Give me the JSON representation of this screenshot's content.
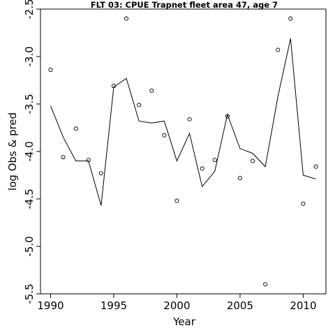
{
  "chart_data": {
    "type": "line",
    "title": "FLT 03: CPUE Trapnet fleet area 47, age 7",
    "xlabel": "Year",
    "ylabel": "log Obs & pred",
    "xlim": [
      1989.2,
      2011.8
    ],
    "ylim": [
      -5.5,
      -2.5
    ],
    "xticks": [
      1990,
      1995,
      2000,
      2005,
      2010
    ],
    "yticks": [
      -5.5,
      -5.0,
      -4.5,
      -4.0,
      -3.5,
      -3.0,
      -2.5
    ],
    "ytick_labels": [
      "-5.5",
      "-5.0",
      "-4.5",
      "-4.0",
      "-3.5",
      "-3.0",
      "-2.5"
    ],
    "grid": false,
    "legend": "none",
    "series": [
      {
        "kind": "points",
        "marker": "open-circle",
        "x": [
          1990,
          1991,
          1992,
          1993,
          1994,
          1995,
          1996,
          1997,
          1998,
          1999,
          2000,
          2001,
          2002,
          2003,
          2004,
          2005,
          2006,
          2007,
          2008,
          2009,
          2010,
          2011
        ],
        "y": [
          -3.14,
          -4.06,
          -3.76,
          -4.09,
          -4.23,
          -3.31,
          -2.6,
          -3.51,
          -3.36,
          -3.83,
          -4.52,
          -3.66,
          -4.18,
          -4.09,
          -3.63,
          -4.28,
          -4.1,
          -5.4,
          -2.93,
          -2.6,
          -4.55,
          -4.16
        ]
      },
      {
        "kind": "line",
        "x": [
          1990,
          1991,
          1992,
          1993,
          1994,
          1995,
          1996,
          1997,
          1998,
          1999,
          2000,
          2001,
          2002,
          2003,
          2004,
          2005,
          2006,
          2007,
          2008,
          2009,
          2010,
          2011
        ],
        "y": [
          -3.52,
          -3.85,
          -4.1,
          -4.1,
          -4.57,
          -3.32,
          -3.23,
          -3.68,
          -3.7,
          -3.68,
          -4.1,
          -3.81,
          -4.37,
          -4.21,
          -3.61,
          -3.97,
          -4.02,
          -4.16,
          -3.42,
          -2.81,
          -4.25,
          -4.29
        ]
      }
    ]
  }
}
